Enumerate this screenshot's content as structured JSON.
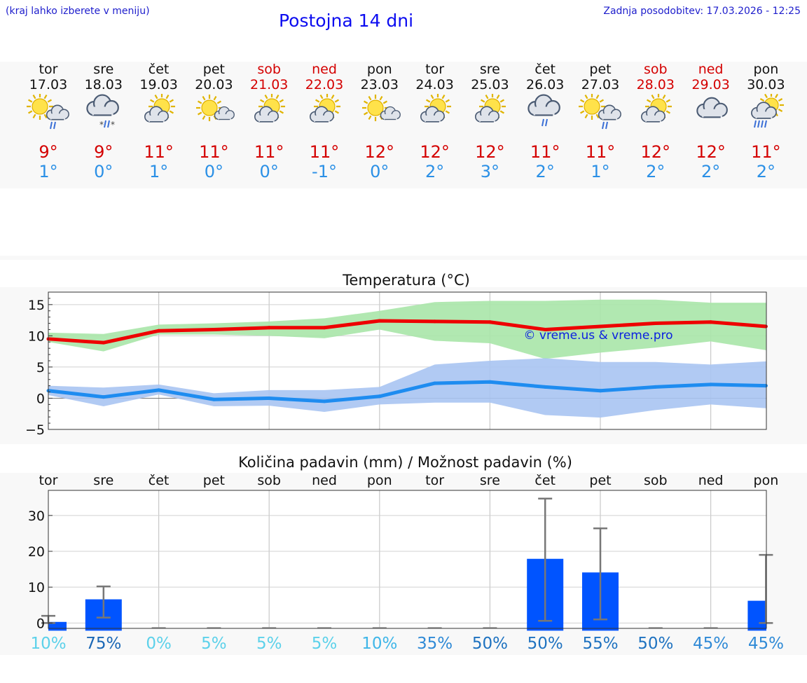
{
  "header": {
    "location_hint": "(kraj lahko izberete v meniju)",
    "title": "Postojna 14 dni",
    "updated": "Zadnja posodobitev: 17.03.2026 - 12:25"
  },
  "days": [
    {
      "name": "tor",
      "date": "17.03",
      "weekend": false,
      "icon": "sun-cloud-rain-icon",
      "tmax": "9°",
      "tmin": "1°"
    },
    {
      "name": "sre",
      "date": "18.03",
      "weekend": false,
      "icon": "cloud-snow-rain-icon",
      "tmax": "9°",
      "tmin": "0°"
    },
    {
      "name": "čet",
      "date": "19.03",
      "weekend": false,
      "icon": "sun-cloud-icon",
      "tmax": "11°",
      "tmin": "1°"
    },
    {
      "name": "pet",
      "date": "20.03",
      "weekend": false,
      "icon": "sun-small-cloud-icon",
      "tmax": "11°",
      "tmin": "0°"
    },
    {
      "name": "sob",
      "date": "21.03",
      "weekend": true,
      "icon": "sun-cloud-icon",
      "tmax": "11°",
      "tmin": "0°"
    },
    {
      "name": "ned",
      "date": "22.03",
      "weekend": true,
      "icon": "sun-cloud-icon",
      "tmax": "11°",
      "tmin": "-1°"
    },
    {
      "name": "pon",
      "date": "23.03",
      "weekend": false,
      "icon": "sun-small-cloud-icon",
      "tmax": "12°",
      "tmin": "0°"
    },
    {
      "name": "tor",
      "date": "24.03",
      "weekend": false,
      "icon": "sun-cloud-icon",
      "tmax": "12°",
      "tmin": "2°"
    },
    {
      "name": "sre",
      "date": "25.03",
      "weekend": false,
      "icon": "sun-cloud-icon",
      "tmax": "12°",
      "tmin": "3°"
    },
    {
      "name": "čet",
      "date": "26.03",
      "weekend": false,
      "icon": "cloud-rain-icon",
      "tmax": "11°",
      "tmin": "2°"
    },
    {
      "name": "pet",
      "date": "27.03",
      "weekend": false,
      "icon": "sun-cloud-rain-icon",
      "tmax": "11°",
      "tmin": "1°"
    },
    {
      "name": "sob",
      "date": "28.03",
      "weekend": true,
      "icon": "sun-cloud-icon",
      "tmax": "12°",
      "tmin": "2°"
    },
    {
      "name": "ned",
      "date": "29.03",
      "weekend": true,
      "icon": "cloud-icon",
      "tmax": "12°",
      "tmin": "2°"
    },
    {
      "name": "pon",
      "date": "30.03",
      "weekend": false,
      "icon": "sun-cloud-heavy-rain-icon",
      "tmax": "11°",
      "tmin": "2°"
    }
  ],
  "chart_data": [
    {
      "type": "line",
      "title": "Temperatura (°C)",
      "xlabel": "",
      "ylabel": "",
      "x": [
        0,
        1,
        2,
        3,
        4,
        5,
        6,
        7,
        8,
        9,
        10,
        11,
        12,
        13
      ],
      "ylim": [
        -5,
        17
      ],
      "yticks": [
        "15",
        "10",
        "5",
        "0",
        "−5"
      ],
      "ytick_values": [
        15,
        10,
        5,
        0,
        -5
      ],
      "watermark": "© vreme.us & vreme.pro",
      "series": [
        {
          "name": "max",
          "color": "#ee0000",
          "values": [
            9.5,
            8.9,
            10.8,
            11.0,
            11.3,
            11.3,
            12.4,
            12.3,
            12.2,
            11.0,
            11.5,
            12.0,
            12.2,
            11.5
          ]
        },
        {
          "name": "min",
          "color": "#1e8cf0",
          "values": [
            1.2,
            0.2,
            1.3,
            -0.2,
            0.0,
            -0.5,
            0.3,
            2.4,
            2.6,
            1.8,
            1.2,
            1.8,
            2.2,
            2.0
          ]
        }
      ],
      "bands": [
        {
          "name": "max-range",
          "color": "#a8e6a8",
          "low": [
            9.0,
            7.5,
            10.2,
            10.2,
            10.0,
            9.6,
            11.0,
            9.2,
            8.8,
            6.3,
            7.3,
            8.1,
            9.1,
            7.7
          ],
          "high": [
            10.5,
            10.3,
            11.8,
            12.0,
            12.3,
            12.8,
            14.0,
            15.4,
            15.6,
            15.6,
            15.8,
            15.8,
            15.3,
            15.3
          ]
        },
        {
          "name": "min-range",
          "color": "#a9c4f2",
          "low": [
            0.5,
            -1.3,
            0.6,
            -1.3,
            -1.2,
            -2.2,
            -1.0,
            -0.7,
            -0.7,
            -2.7,
            -3.1,
            -1.9,
            -1.0,
            -1.6
          ],
          "high": [
            2.0,
            1.7,
            2.2,
            0.8,
            1.3,
            1.3,
            1.8,
            5.4,
            6.0,
            6.4,
            5.8,
            5.8,
            5.4,
            5.9
          ]
        }
      ]
    },
    {
      "type": "bar",
      "title": "Količina padavin (mm) / Možnost padavin (%)",
      "categories": [
        "tor",
        "sre",
        "čet",
        "pet",
        "sob",
        "ned",
        "pon",
        "tor",
        "sre",
        "čet",
        "pet",
        "sob",
        "ned",
        "pon"
      ],
      "values": [
        0.3,
        6.6,
        0,
        0,
        0,
        0,
        0,
        0,
        0,
        17.9,
        14.1,
        0,
        0,
        6.2
      ],
      "err_low": [
        0,
        1.5,
        0,
        0,
        0,
        0,
        0,
        0,
        0,
        0.6,
        1.0,
        0,
        0,
        0
      ],
      "err_high": [
        2,
        10.2,
        0,
        0,
        0,
        0,
        0,
        0,
        0,
        34.7,
        26.4,
        0,
        0,
        19
      ],
      "ylim": [
        -1.5,
        37
      ],
      "yticks": [
        "30",
        "20",
        "10",
        "0"
      ],
      "ytick_values": [
        30,
        20,
        10,
        0
      ],
      "probabilities": [
        "10%",
        "75%",
        "0%",
        "5%",
        "5%",
        "5%",
        "10%",
        "35%",
        "50%",
        "50%",
        "55%",
        "50%",
        "45%",
        "45%"
      ],
      "prob_colors": [
        "#5cd1ea",
        "#1a67b5",
        "#5cd1ea",
        "#5cd1ea",
        "#5cd1ea",
        "#5cd1ea",
        "#3fb6e8",
        "#2f8ad6",
        "#1e72c0",
        "#1e72c0",
        "#1e72c0",
        "#1e72c0",
        "#2f8ad6",
        "#2f8ad6"
      ],
      "bar_color": "#0054ff"
    }
  ]
}
